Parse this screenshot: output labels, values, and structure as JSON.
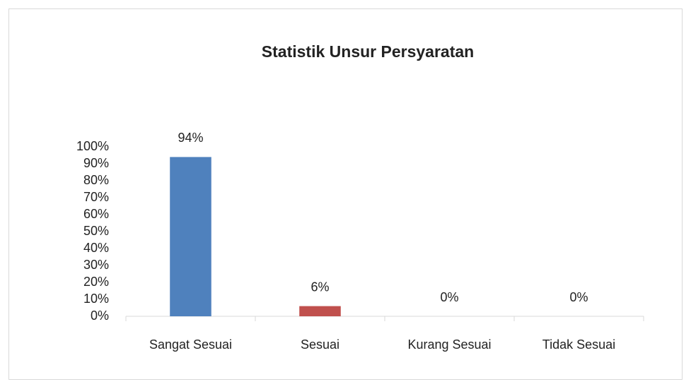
{
  "chart_data": {
    "type": "bar",
    "title": "Statistik Unsur Persyaratan",
    "categories": [
      "Sangat Sesuai",
      "Sesuai",
      "Kurang Sesuai",
      "Tidak Sesuai"
    ],
    "values": [
      94,
      6,
      0,
      0
    ],
    "value_labels": [
      "94%",
      "6%",
      "0%",
      "0%"
    ],
    "colors": [
      "#4f81bd",
      "#c0504d",
      "#9bbb59",
      "#8064a2"
    ],
    "ylim": [
      0,
      100
    ],
    "yticks": [
      {
        "value": 0,
        "label": "0%"
      },
      {
        "value": 10,
        "label": "10%"
      },
      {
        "value": 20,
        "label": "20%"
      },
      {
        "value": 30,
        "label": "30%"
      },
      {
        "value": 40,
        "label": "40%"
      },
      {
        "value": 50,
        "label": "50%"
      },
      {
        "value": 60,
        "label": "60%"
      },
      {
        "value": 70,
        "label": "70%"
      },
      {
        "value": 80,
        "label": "80%"
      },
      {
        "value": 90,
        "label": "90%"
      },
      {
        "value": 100,
        "label": "100%"
      }
    ],
    "grid": false
  }
}
